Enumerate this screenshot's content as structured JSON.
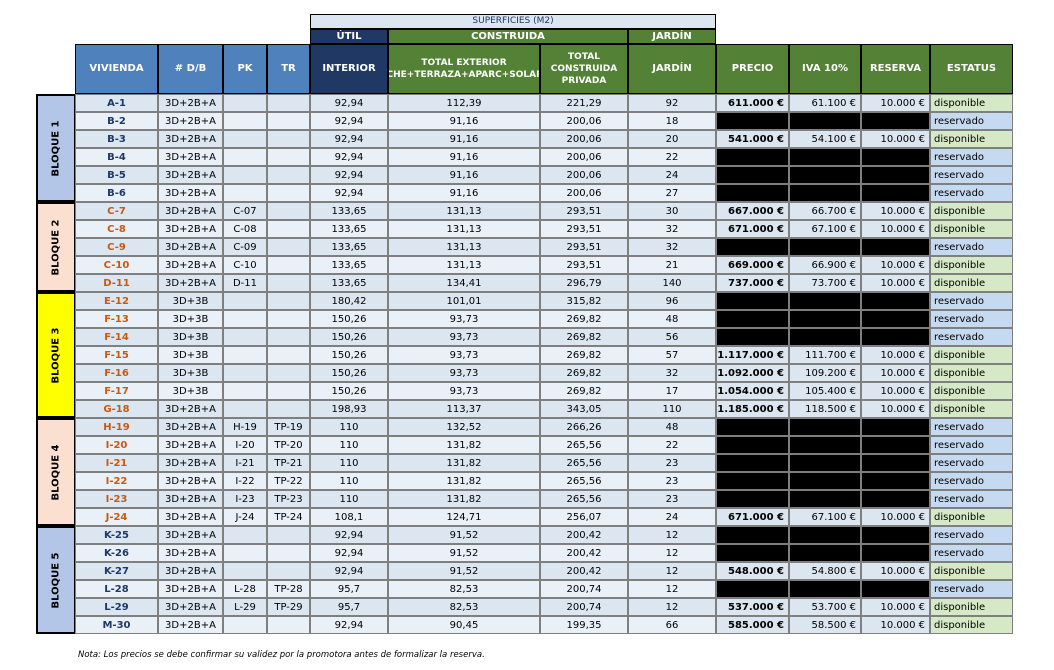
{
  "colors": {
    "blue_header": "#4f81bd",
    "dark_blue_header": "#1f3864",
    "green_header": "#538135",
    "light_blue": "#dce6f1",
    "light_blue_alt": "#eaf0f8",
    "green_light": "#d6e9c6",
    "bloque_blue": "#b4c6e7",
    "bloque_peach": "#fbe0d2",
    "bloque_yellow": "#ffff00",
    "black": "#000000"
  },
  "header": {
    "superficies": "SUPERFICIES (M2)",
    "util": "ÚTIL",
    "construida": "CONSTRUIDA",
    "jardin_top": "JARDÍN",
    "columns": {
      "vivienda": "VIVIENDA",
      "db": "# D/B",
      "pk": "PK",
      "tr": "TR",
      "interior": "INTERIOR",
      "total_exterior": "TOTAL EXTERIOR (PORCHE+TERRAZA+APARC+SOLARIUM)",
      "total_construida": "TOTAL CONSTRUIDA PRIVADA",
      "jardin": "JARDÍN",
      "precio": "PRECIO",
      "iva": "IVA 10%",
      "reserva": "RESERVA",
      "estatus": "ESTATUS"
    }
  },
  "bloques": [
    {
      "label": "BLOQUE 1",
      "color": "#b4c6e7",
      "rows": [
        {
          "vivienda": "A-1",
          "db": "3D+2B+A",
          "pk": "",
          "tr": "",
          "interior": "92,94",
          "exterior": "112,39",
          "construida": "221,29",
          "jardin": "92",
          "precio": "611.000 €",
          "iva": "61.100 €",
          "reserva": "10.000 €",
          "estatus": "disponible"
        },
        {
          "vivienda": "B-2",
          "db": "3D+2B+A",
          "pk": "",
          "tr": "",
          "interior": "92,94",
          "exterior": "91,16",
          "construida": "200,06",
          "jardin": "18",
          "precio": "",
          "iva": "",
          "reserva": "",
          "estatus": "reservado"
        },
        {
          "vivienda": "B-3",
          "db": "3D+2B+A",
          "pk": "",
          "tr": "",
          "interior": "92,94",
          "exterior": "91,16",
          "construida": "200,06",
          "jardin": "20",
          "precio": "541.000 €",
          "iva": "54.100 €",
          "reserva": "10.000 €",
          "estatus": "disponible"
        },
        {
          "vivienda": "B-4",
          "db": "3D+2B+A",
          "pk": "",
          "tr": "",
          "interior": "92,94",
          "exterior": "91,16",
          "construida": "200,06",
          "jardin": "22",
          "precio": "",
          "iva": "",
          "reserva": "",
          "estatus": "reservado"
        },
        {
          "vivienda": "B-5",
          "db": "3D+2B+A",
          "pk": "",
          "tr": "",
          "interior": "92,94",
          "exterior": "91,16",
          "construida": "200,06",
          "jardin": "24",
          "precio": "",
          "iva": "",
          "reserva": "",
          "estatus": "reservado"
        },
        {
          "vivienda": "B-6",
          "db": "3D+2B+A",
          "pk": "",
          "tr": "",
          "interior": "92,94",
          "exterior": "91,16",
          "construida": "200,06",
          "jardin": "27",
          "precio": "",
          "iva": "",
          "reserva": "",
          "estatus": "reservado"
        }
      ]
    },
    {
      "label": "BLOQUE 2",
      "color": "#fbe0d2",
      "rows": [
        {
          "vivienda": "C-7",
          "db": "3D+2B+A",
          "pk": "C-07",
          "tr": "",
          "interior": "133,65",
          "exterior": "131,13",
          "construida": "293,51",
          "jardin": "30",
          "precio": "667.000 €",
          "iva": "66.700 €",
          "reserva": "10.000 €",
          "estatus": "disponible"
        },
        {
          "vivienda": "C-8",
          "db": "3D+2B+A",
          "pk": "C-08",
          "tr": "",
          "interior": "133,65",
          "exterior": "131,13",
          "construida": "293,51",
          "jardin": "32",
          "precio": "671.000 €",
          "iva": "67.100 €",
          "reserva": "10.000 €",
          "estatus": "disponible"
        },
        {
          "vivienda": "C-9",
          "db": "3D+2B+A",
          "pk": "C-09",
          "tr": "",
          "interior": "133,65",
          "exterior": "131,13",
          "construida": "293,51",
          "jardin": "32",
          "precio": "",
          "iva": "",
          "reserva": "",
          "estatus": "reservado"
        },
        {
          "vivienda": "C-10",
          "db": "3D+2B+A",
          "pk": "C-10",
          "tr": "",
          "interior": "133,65",
          "exterior": "131,13",
          "construida": "293,51",
          "jardin": "21",
          "precio": "669.000 €",
          "iva": "66.900 €",
          "reserva": "10.000 €",
          "estatus": "disponible"
        },
        {
          "vivienda": "D-11",
          "db": "3D+2B+A",
          "pk": "D-11",
          "tr": "",
          "interior": "133,65",
          "exterior": "134,41",
          "construida": "296,79",
          "jardin": "140",
          "precio": "737.000 €",
          "iva": "73.700 €",
          "reserva": "10.000 €",
          "estatus": "disponible"
        }
      ]
    },
    {
      "label": "BLOQUE 3",
      "color": "#ffff00",
      "rows": [
        {
          "vivienda": "E-12",
          "db": "3D+3B",
          "pk": "",
          "tr": "",
          "interior": "180,42",
          "exterior": "101,01",
          "construida": "315,82",
          "jardin": "96",
          "precio": "",
          "iva": "",
          "reserva": "",
          "estatus": "reservado"
        },
        {
          "vivienda": "F-13",
          "db": "3D+3B",
          "pk": "",
          "tr": "",
          "interior": "150,26",
          "exterior": "93,73",
          "construida": "269,82",
          "jardin": "48",
          "precio": "",
          "iva": "",
          "reserva": "",
          "estatus": "reservado"
        },
        {
          "vivienda": "F-14",
          "db": "3D+3B",
          "pk": "",
          "tr": "",
          "interior": "150,26",
          "exterior": "93,73",
          "construida": "269,82",
          "jardin": "56",
          "precio": "",
          "iva": "",
          "reserva": "",
          "estatus": "reservado"
        },
        {
          "vivienda": "F-15",
          "db": "3D+3B",
          "pk": "",
          "tr": "",
          "interior": "150,26",
          "exterior": "93,73",
          "construida": "269,82",
          "jardin": "57",
          "precio": "1.117.000 €",
          "iva": "111.700 €",
          "reserva": "10.000 €",
          "estatus": "disponible"
        },
        {
          "vivienda": "F-16",
          "db": "3D+3B",
          "pk": "",
          "tr": "",
          "interior": "150,26",
          "exterior": "93,73",
          "construida": "269,82",
          "jardin": "32",
          "precio": "1.092.000 €",
          "iva": "109.200 €",
          "reserva": "10.000 €",
          "estatus": "disponible"
        },
        {
          "vivienda": "F-17",
          "db": "3D+3B",
          "pk": "",
          "tr": "",
          "interior": "150,26",
          "exterior": "93,73",
          "construida": "269,82",
          "jardin": "17",
          "precio": "1.054.000 €",
          "iva": "105.400 €",
          "reserva": "10.000 €",
          "estatus": "disponible"
        },
        {
          "vivienda": "G-18",
          "db": "3D+2B+A",
          "pk": "",
          "tr": "",
          "interior": "198,93",
          "exterior": "113,37",
          "construida": "343,05",
          "jardin": "110",
          "precio": "1.185.000 €",
          "iva": "118.500 €",
          "reserva": "10.000 €",
          "estatus": "disponible"
        }
      ]
    },
    {
      "label": "BLOQUE 4",
      "color": "#fbe0d2",
      "rows": [
        {
          "vivienda": "H-19",
          "db": "3D+2B+A",
          "pk": "H-19",
          "tr": "TP-19",
          "interior": "110",
          "exterior": "132,52",
          "construida": "266,26",
          "jardin": "48",
          "precio": "",
          "iva": "",
          "reserva": "",
          "estatus": "reservado"
        },
        {
          "vivienda": "I-20",
          "db": "3D+2B+A",
          "pk": "I-20",
          "tr": "TP-20",
          "interior": "110",
          "exterior": "131,82",
          "construida": "265,56",
          "jardin": "22",
          "precio": "",
          "iva": "",
          "reserva": "",
          "estatus": "reservado"
        },
        {
          "vivienda": "I-21",
          "db": "3D+2B+A",
          "pk": "I-21",
          "tr": "TP-21",
          "interior": "110",
          "exterior": "131,82",
          "construida": "265,56",
          "jardin": "23",
          "precio": "",
          "iva": "",
          "reserva": "",
          "estatus": "reservado"
        },
        {
          "vivienda": "I-22",
          "db": "3D+2B+A",
          "pk": "I-22",
          "tr": "TP-22",
          "interior": "110",
          "exterior": "131,82",
          "construida": "265,56",
          "jardin": "23",
          "precio": "",
          "iva": "",
          "reserva": "",
          "estatus": "reservado"
        },
        {
          "vivienda": "I-23",
          "db": "3D+2B+A",
          "pk": "I-23",
          "tr": "TP-23",
          "interior": "110",
          "exterior": "131,82",
          "construida": "265,56",
          "jardin": "23",
          "precio": "",
          "iva": "",
          "reserva": "",
          "estatus": "reservado"
        },
        {
          "vivienda": "J-24",
          "db": "3D+2B+A",
          "pk": "J-24",
          "tr": "TP-24",
          "interior": "108,1",
          "exterior": "124,71",
          "construida": "256,07",
          "jardin": "24",
          "precio": "671.000 €",
          "iva": "67.100 €",
          "reserva": "10.000 €",
          "estatus": "disponible"
        }
      ]
    },
    {
      "label": "BLOQUE 5",
      "color": "#b4c6e7",
      "rows": [
        {
          "vivienda": "K-25",
          "db": "3D+2B+A",
          "pk": "",
          "tr": "",
          "interior": "92,94",
          "exterior": "91,52",
          "construida": "200,42",
          "jardin": "12",
          "precio": "",
          "iva": "",
          "reserva": "",
          "estatus": "reservado"
        },
        {
          "vivienda": "K-26",
          "db": "3D+2B+A",
          "pk": "",
          "tr": "",
          "interior": "92,94",
          "exterior": "91,52",
          "construida": "200,42",
          "jardin": "12",
          "precio": "",
          "iva": "",
          "reserva": "",
          "estatus": "reservado"
        },
        {
          "vivienda": "K-27",
          "db": "3D+2B+A",
          "pk": "",
          "tr": "",
          "interior": "92,94",
          "exterior": "91,52",
          "construida": "200,42",
          "jardin": "12",
          "precio": "548.000 €",
          "iva": "54.800 €",
          "reserva": "10.000 €",
          "estatus": "disponible"
        },
        {
          "vivienda": "L-28",
          "db": "3D+2B+A",
          "pk": "L-28",
          "tr": "TP-28",
          "interior": "95,7",
          "exterior": "82,53",
          "construida": "200,74",
          "jardin": "12",
          "precio": "",
          "iva": "",
          "reserva": "",
          "estatus": "reservado"
        },
        {
          "vivienda": "L-29",
          "db": "3D+2B+A",
          "pk": "L-29",
          "tr": "TP-29",
          "interior": "95,7",
          "exterior": "82,53",
          "construida": "200,74",
          "jardin": "12",
          "precio": "537.000 €",
          "iva": "53.700 €",
          "reserva": "10.000 €",
          "estatus": "disponible"
        },
        {
          "vivienda": "M-30",
          "db": "3D+2B+A",
          "pk": "",
          "tr": "",
          "interior": "92,94",
          "exterior": "90,45",
          "construida": "199,35",
          "jardin": "66",
          "precio": "585.000 €",
          "iva": "58.500 €",
          "reserva": "10.000 €",
          "estatus": "disponible"
        }
      ]
    }
  ],
  "note": "Nota: Los precios se debe confirmar su validez por la promotora antes de formalizar la reserva."
}
